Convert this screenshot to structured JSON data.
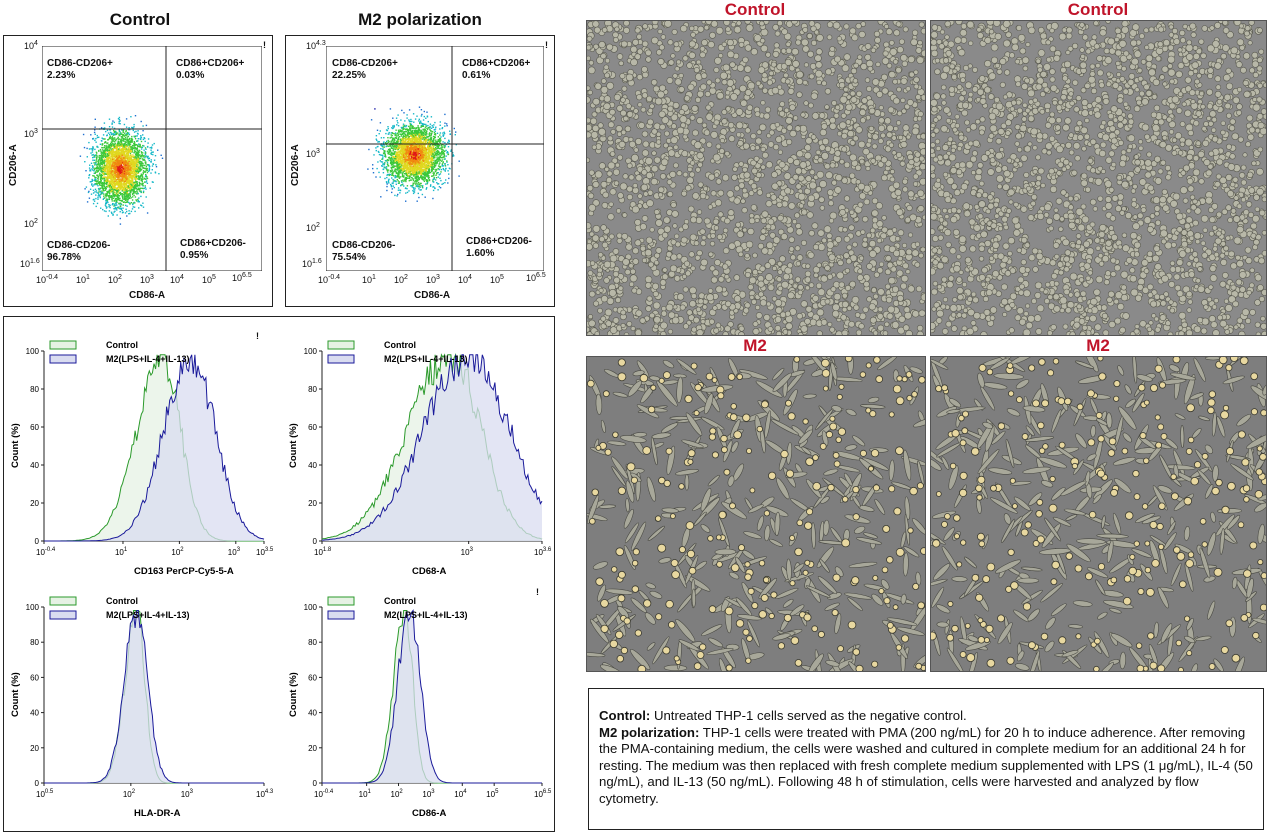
{
  "flow_titles": {
    "control": "Control",
    "m2": "M2 polarization"
  },
  "scatter_plots": [
    {
      "id": "control",
      "quadrants": {
        "ul_name": "CD86-CD206+",
        "ul_pct": "2.23%",
        "ur_name": "CD86+CD206+",
        "ur_pct": "0.03%",
        "ll_name": "CD86-CD206-",
        "ll_pct": "96.78%",
        "lr_name": "CD86+CD206-",
        "lr_pct": "0.95%"
      },
      "xlabel": "CD86-A",
      "ylabel": "CD206-A",
      "yticks": [
        {
          "b": "10",
          "e": "4"
        },
        {
          "b": "10",
          "e": "3"
        },
        {
          "b": "10",
          "e": "2"
        },
        {
          "b": "10",
          "e": "1.6"
        }
      ],
      "xticks": [
        {
          "b": "10",
          "e": "-0.4"
        },
        {
          "b": "10",
          "e": "1"
        },
        {
          "b": "10",
          "e": "2"
        },
        {
          "b": "10",
          "e": "3"
        },
        {
          "b": "10",
          "e": "4"
        },
        {
          "b": "10",
          "e": "5"
        },
        {
          "b": "10",
          "e": "6.5"
        }
      ]
    },
    {
      "id": "m2",
      "quadrants": {
        "ul_name": "CD86-CD206+",
        "ul_pct": "22.25%",
        "ur_name": "CD86+CD206+",
        "ur_pct": "0.61%",
        "ll_name": "CD86-CD206-",
        "ll_pct": "75.54%",
        "lr_name": "CD86+CD206-",
        "lr_pct": "1.60%"
      },
      "xlabel": "CD86-A",
      "ylabel": "CD206-A",
      "yticks": [
        {
          "b": "10",
          "e": "4.3"
        },
        {
          "b": "10",
          "e": "3"
        },
        {
          "b": "10",
          "e": "2"
        },
        {
          "b": "10",
          "e": "1.6"
        }
      ],
      "xticks": [
        {
          "b": "10",
          "e": "-0.4"
        },
        {
          "b": "10",
          "e": "1"
        },
        {
          "b": "10",
          "e": "2"
        },
        {
          "b": "10",
          "e": "3"
        },
        {
          "b": "10",
          "e": "4"
        },
        {
          "b": "10",
          "e": "5"
        },
        {
          "b": "10",
          "e": "6.5"
        }
      ]
    }
  ],
  "histogram_legend": {
    "control": "Control",
    "m2": "M2(LPS+IL-4+IL-13)"
  },
  "histograms": [
    {
      "xlabel": "CD163 PerCP-Cy5-5-A",
      "ylabel": "Count (%)",
      "yticks": [
        "100",
        "80",
        "60",
        "40",
        "20",
        "0"
      ],
      "xticks": [
        {
          "b": "10",
          "e": "-0.4"
        },
        {
          "b": "10",
          "e": "1"
        },
        {
          "b": "10",
          "e": "2"
        },
        {
          "b": "10",
          "e": "3"
        },
        {
          "b": "10",
          "e": "3.5"
        }
      ]
    },
    {
      "xlabel": "CD68-A",
      "ylabel": "Count (%)",
      "yticks": [
        "100",
        "80",
        "60",
        "40",
        "20",
        "0"
      ],
      "xticks": [
        {
          "b": "10",
          "e": "1.8"
        },
        {
          "b": "10",
          "e": "3"
        },
        {
          "b": "10",
          "e": "3.6"
        }
      ]
    },
    {
      "xlabel": "HLA-DR-A",
      "ylabel": "Count (%)",
      "yticks": [
        "100",
        "80",
        "60",
        "40",
        "20",
        "0"
      ],
      "xticks": [
        {
          "b": "10",
          "e": "0.5"
        },
        {
          "b": "10",
          "e": "2"
        },
        {
          "b": "10",
          "e": "3"
        },
        {
          "b": "10",
          "e": "4.3"
        }
      ]
    },
    {
      "xlabel": "CD86-A",
      "ylabel": "Count (%)",
      "yticks": [
        "100",
        "80",
        "60",
        "40",
        "20",
        "0"
      ],
      "xticks": [
        {
          "b": "10",
          "e": "-0.4"
        },
        {
          "b": "10",
          "e": "1"
        },
        {
          "b": "10",
          "e": "2"
        },
        {
          "b": "10",
          "e": "3"
        },
        {
          "b": "10",
          "e": "4"
        },
        {
          "b": "10",
          "e": "5"
        },
        {
          "b": "10",
          "e": "6.5"
        }
      ]
    }
  ],
  "micro_titles": {
    "control_1": "Control",
    "control_2": "Control",
    "m2_1": "M2",
    "m2_2": "M2"
  },
  "description": {
    "control_label": "Control:",
    "control_text": " Untreated THP-1 cells served as the negative control.",
    "m2_label": "M2 polarization:",
    "m2_text": " THP-1 cells were treated with PMA (200 ng/mL) for 20 h to induce adherence. After removing the PMA-containing medium, the cells were washed and cultured in complete medium for an additional 24 h for resting. The medium was then replaced with fresh complete medium supplemented with LPS (1 μg/mL), IL-4 (50 ng/mL), and IL-13 (50 ng/mL). Following 48 h of stimulation, cells were harvested and analyzed by flow cytometry."
  },
  "colors": {
    "control_fill": "#e6f2e4",
    "control_line": "#2b9a2b",
    "m2_fill": "#d9dcf0",
    "m2_line": "#1a1a9a",
    "micro_title": "#c0142a"
  },
  "chart_data": [
    {
      "type": "scatter",
      "title": "Control",
      "xlabel": "CD86-A",
      "ylabel": "CD206-A",
      "quadrant_percentages": {
        "CD86-CD206+": 2.23,
        "CD86+CD206+": 0.03,
        "CD86-CD206-": 96.78,
        "CD86+CD206-": 0.95
      }
    },
    {
      "type": "scatter",
      "title": "M2 polarization",
      "xlabel": "CD86-A",
      "ylabel": "CD206-A",
      "quadrant_percentages": {
        "CD86-CD206+": 22.25,
        "CD86+CD206+": 0.61,
        "CD86-CD206-": 75.54,
        "CD86+CD206-": 1.6
      }
    },
    {
      "type": "area",
      "xlabel": "CD163 PerCP-Cy5-5-A",
      "ylabel": "Count (%)",
      "ylim": [
        0,
        100
      ],
      "xlim_log": [
        -0.4,
        3.5
      ],
      "series": [
        {
          "name": "Control",
          "mode_log": 1.7
        },
        {
          "name": "M2(LPS+IL-4+IL-13)",
          "mode_log": 2.2
        }
      ]
    },
    {
      "type": "area",
      "xlabel": "CD68-A",
      "ylabel": "Count (%)",
      "ylim": [
        0,
        100
      ],
      "xlim_log": [
        1.8,
        3.6
      ],
      "series": [
        {
          "name": "Control",
          "mode_log": 2.85
        },
        {
          "name": "M2(LPS+IL-4+IL-13)",
          "mode_log": 3.0
        }
      ]
    },
    {
      "type": "area",
      "xlabel": "HLA-DR-A",
      "ylabel": "Count (%)",
      "ylim": [
        0,
        100
      ],
      "xlim_log": [
        0.5,
        4.3
      ],
      "series": [
        {
          "name": "Control",
          "mode_log": 2.1
        },
        {
          "name": "M2(LPS+IL-4+IL-13)",
          "mode_log": 2.1
        }
      ]
    },
    {
      "type": "area",
      "xlabel": "CD86-A",
      "ylabel": "Count (%)",
      "ylim": [
        0,
        100
      ],
      "xlim_log": [
        -0.4,
        6.5
      ],
      "series": [
        {
          "name": "Control",
          "mode_log": 2.2
        },
        {
          "name": "M2(LPS+IL-4+IL-13)",
          "mode_log": 2.35
        }
      ]
    }
  ]
}
